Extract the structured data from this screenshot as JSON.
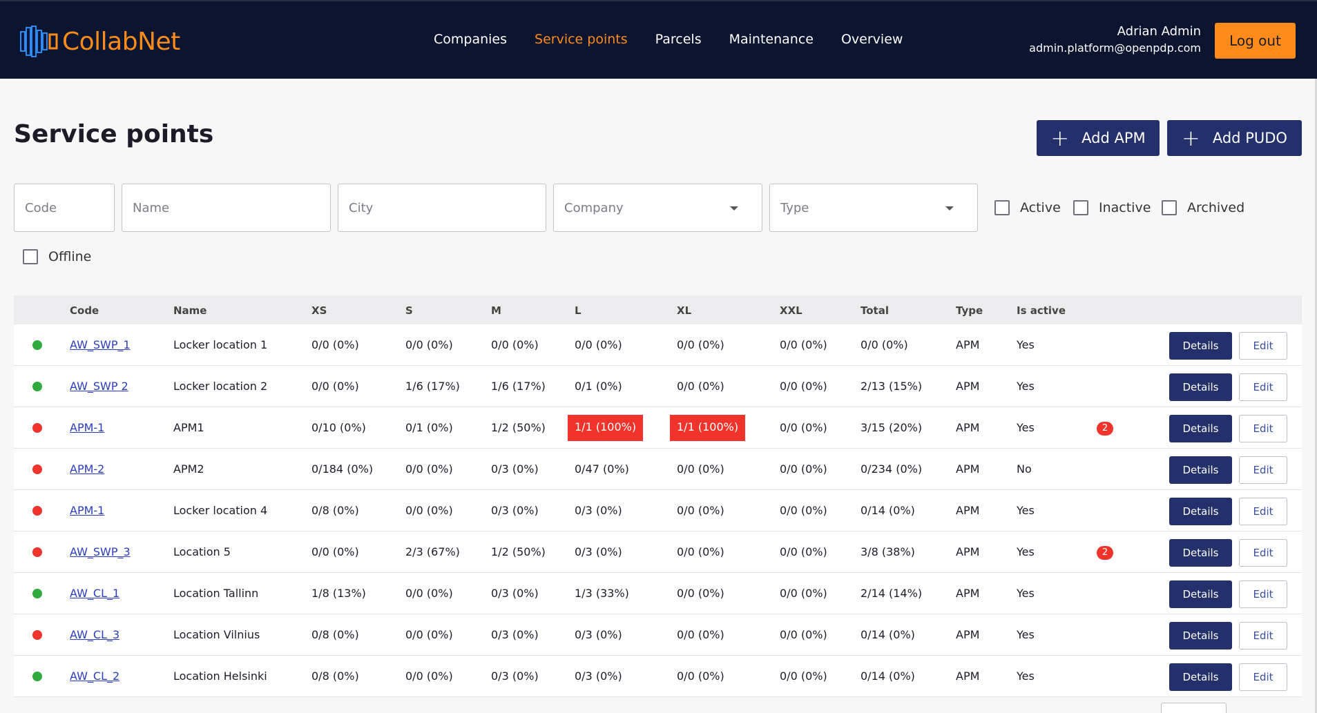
{
  "app": {
    "name": "CollabNet"
  },
  "nav": [
    {
      "label": "Companies",
      "active": false
    },
    {
      "label": "Service points",
      "active": true
    },
    {
      "label": "Parcels",
      "active": false
    },
    {
      "label": "Maintenance",
      "active": false
    },
    {
      "label": "Overview",
      "active": false
    }
  ],
  "user": {
    "name": "Adrian Admin",
    "email": "admin.platform@openpdp.com",
    "logout_label": "Log out"
  },
  "page": {
    "title": "Service points",
    "add_apm_label": "Add APM",
    "add_pudo_label": "Add PUDO"
  },
  "filters": {
    "code_placeholder": "Code",
    "name_placeholder": "Name",
    "city_placeholder": "City",
    "company_placeholder": "Company",
    "type_placeholder": "Type",
    "checks": [
      "Active",
      "Inactive",
      "Archived",
      "Offline"
    ]
  },
  "table": {
    "headers": [
      "Code",
      "Name",
      "XS",
      "S",
      "M",
      "L",
      "XL",
      "XXL",
      "Total",
      "Type",
      "Is active"
    ],
    "details_label": "Details",
    "edit_label": "Edit",
    "colors": {
      "online": "#2eaa3f",
      "offline": "#f0342b",
      "accent": "#24306b"
    },
    "rows": [
      {
        "status": "online",
        "code": "AW_SWP_1",
        "name": "Locker location 1",
        "xs": "0/0 (0%)",
        "s": "0/0 (0%)",
        "m": "0/0 (0%)",
        "l": "0/0 (0%)",
        "xl": "0/0 (0%)",
        "xxl": "0/0 (0%)",
        "total": "0/0 (0%)",
        "type": "APM",
        "active": "Yes",
        "badge": "",
        "hl": []
      },
      {
        "status": "online",
        "code": "AW_SWP 2",
        "name": "Locker location 2",
        "xs": "0/0 (0%)",
        "s": "1/6 (17%)",
        "m": "1/6 (17%)",
        "l": "0/1 (0%)",
        "xl": "0/0 (0%)",
        "xxl": "0/0 (0%)",
        "total": "2/13 (15%)",
        "type": "APM",
        "active": "Yes",
        "badge": "",
        "hl": []
      },
      {
        "status": "offline",
        "code": "APM-1",
        "name": "APM1",
        "xs": "0/10 (0%)",
        "s": "0/1 (0%)",
        "m": "1/2 (50%)",
        "l": "1/1 (100%)",
        "xl": "1/1 (100%)",
        "xxl": "0/0 (0%)",
        "total": "3/15 (20%)",
        "type": "APM",
        "active": "Yes",
        "badge": "2",
        "hl": [
          "l",
          "xl"
        ]
      },
      {
        "status": "offline",
        "code": "APM-2",
        "name": "APM2",
        "xs": "0/184 (0%)",
        "s": "0/0 (0%)",
        "m": "0/3 (0%)",
        "l": "0/47 (0%)",
        "xl": "0/0 (0%)",
        "xxl": "0/0 (0%)",
        "total": "0/234 (0%)",
        "type": "APM",
        "active": "No",
        "badge": "",
        "hl": []
      },
      {
        "status": "offline",
        "code": "APM-1",
        "name": "Locker location 4",
        "xs": "0/8 (0%)",
        "s": "0/0 (0%)",
        "m": "0/3 (0%)",
        "l": "0/3 (0%)",
        "xl": "0/0 (0%)",
        "xxl": "0/0 (0%)",
        "total": "0/14 (0%)",
        "type": "APM",
        "active": "Yes",
        "badge": "",
        "hl": []
      },
      {
        "status": "offline",
        "code": "AW_SWP_3",
        "name": "Location 5",
        "xs": "0/0 (0%)",
        "s": "2/3 (67%)",
        "m": "1/2 (50%)",
        "l": "0/3 (0%)",
        "xl": "0/0 (0%)",
        "xxl": "0/0 (0%)",
        "total": "3/8 (38%)",
        "type": "APM",
        "active": "Yes",
        "badge": "2",
        "hl": []
      },
      {
        "status": "online",
        "code": "AW_CL_1",
        "name": "Location Tallinn",
        "xs": "1/8 (13%)",
        "s": "0/0 (0%)",
        "m": "0/3 (0%)",
        "l": "1/3 (33%)",
        "xl": "0/0 (0%)",
        "xxl": "0/0 (0%)",
        "total": "2/14 (14%)",
        "type": "APM",
        "active": "Yes",
        "badge": "",
        "hl": []
      },
      {
        "status": "offline",
        "code": "AW_CL_3",
        "name": "Location Vilnius",
        "xs": "0/8 (0%)",
        "s": "0/0 (0%)",
        "m": "0/3 (0%)",
        "l": "0/3 (0%)",
        "xl": "0/0 (0%)",
        "xxl": "0/0 (0%)",
        "total": "0/14 (0%)",
        "type": "APM",
        "active": "Yes",
        "badge": "",
        "hl": []
      },
      {
        "status": "online",
        "code": "AW_CL_2",
        "name": "Location Helsinki",
        "xs": "0/8 (0%)",
        "s": "0/0 (0%)",
        "m": "0/3 (0%)",
        "l": "0/3 (0%)",
        "xl": "0/0 (0%)",
        "xxl": "0/0 (0%)",
        "total": "0/14 (0%)",
        "type": "APM",
        "active": "Yes",
        "badge": "",
        "hl": []
      }
    ]
  }
}
